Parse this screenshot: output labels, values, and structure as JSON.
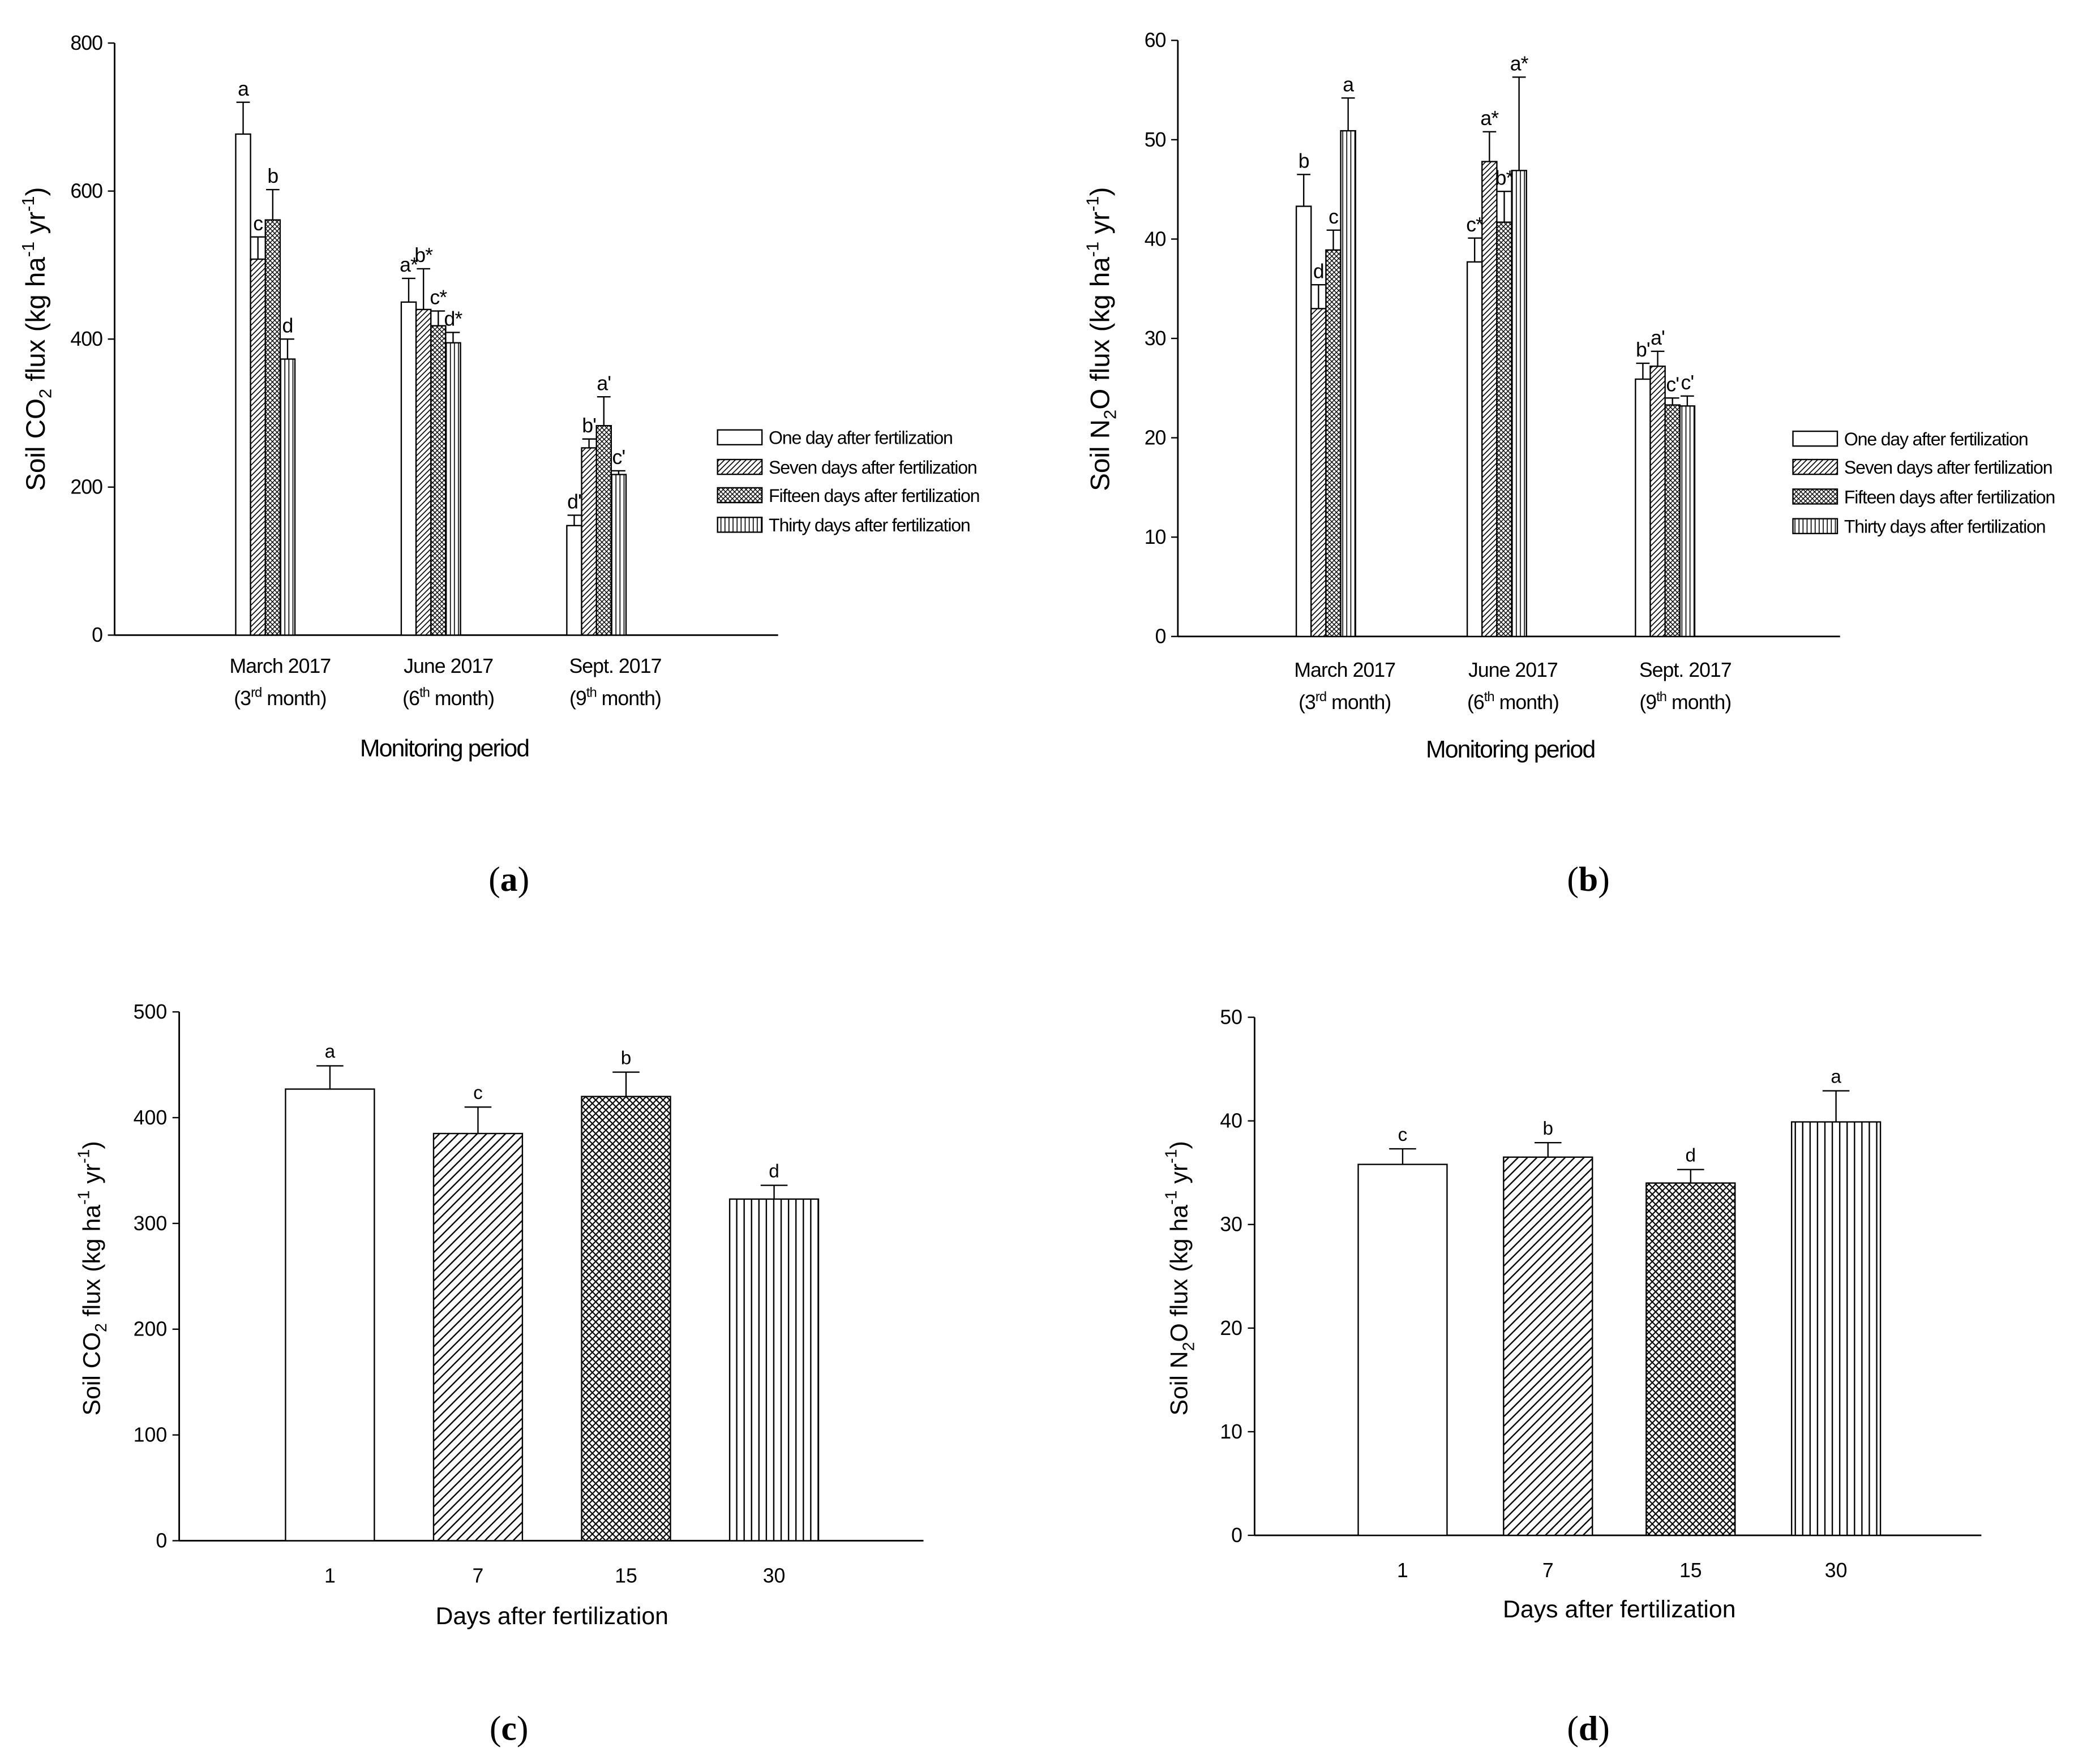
{
  "chart_data": [
    {
      "type": "bar",
      "panel_label": {
        "open": "(",
        "letter": "a",
        "close": ")"
      },
      "ylabel": {
        "pre": "Soil CO",
        "sub": "2",
        "mid": " flux (kg ha",
        "sup1": "-1",
        "mid2": " yr",
        "sup2": "-1",
        "post": ")"
      },
      "xlabel": "Monitoring period",
      "ylim": [
        0,
        800
      ],
      "yticks": [
        0,
        200,
        400,
        600,
        800
      ],
      "categories": [
        {
          "line1": "March 2017",
          "line2_pre": "(3",
          "line2_sup": "rd",
          "line2_post": " month)"
        },
        {
          "line1": "June 2017",
          "line2_pre": "(6",
          "line2_sup": "th",
          "line2_post": " month)"
        },
        {
          "line1": "Sept. 2017",
          "line2_pre": "(9",
          "line2_sup": "th",
          "line2_post": " month)"
        }
      ],
      "series": [
        {
          "name": "One day after fertilization",
          "values": [
            677,
            450,
            148
          ],
          "errors": [
            43,
            32,
            14
          ],
          "labels": [
            "a",
            "a*",
            "d'"
          ]
        },
        {
          "name": "Seven days after fertilization",
          "values": [
            508,
            440,
            253
          ],
          "errors": [
            30,
            55,
            12
          ],
          "labels": [
            "c",
            "b*",
            "b'"
          ]
        },
        {
          "name": "Fifteen days after fertilization",
          "values": [
            561,
            418,
            283
          ],
          "errors": [
            41,
            20,
            39
          ],
          "labels": [
            "b",
            "c*",
            "a'"
          ]
        },
        {
          "name": "Thirty days after fertilization",
          "values": [
            373,
            395,
            217
          ],
          "errors": [
            27,
            14,
            5
          ],
          "labels": [
            "d",
            "d*",
            "c'"
          ]
        }
      ]
    },
    {
      "type": "bar",
      "panel_label": {
        "open": "(",
        "letter": "b",
        "close": ")"
      },
      "ylabel": {
        "pre": "Soil N",
        "sub": "2",
        "mid": "O flux (kg ha",
        "sup1": "-1",
        "mid2": " yr",
        "sup2": "-1",
        "post": ")"
      },
      "xlabel": "Monitoring period",
      "ylim": [
        0,
        60
      ],
      "yticks": [
        0,
        10,
        20,
        30,
        40,
        50,
        60
      ],
      "categories": [
        {
          "line1": "March 2017",
          "line2_pre": "(3",
          "line2_sup": "rd",
          "line2_post": " month)"
        },
        {
          "line1": "June 2017",
          "line2_pre": "(6",
          "line2_sup": "th",
          "line2_post": " month)"
        },
        {
          "line1": "Sept. 2017",
          "line2_pre": "(9",
          "line2_sup": "th",
          "line2_post": " month)"
        }
      ],
      "series": [
        {
          "name": "One day after fertilization",
          "values": [
            43.3,
            37.7,
            25.9
          ],
          "errors": [
            3.2,
            2.4,
            1.6
          ],
          "labels": [
            "b",
            "c*",
            "b'"
          ]
        },
        {
          "name": "Seven days after fertilization",
          "values": [
            33.0,
            47.8,
            27.2
          ],
          "errors": [
            2.4,
            3.0,
            1.5
          ],
          "labels": [
            "d",
            "a*",
            "a'"
          ]
        },
        {
          "name": "Fifteen days after fertilization",
          "values": [
            38.9,
            41.7,
            23.3
          ],
          "errors": [
            2.0,
            3.1,
            0.7
          ],
          "labels": [
            "c",
            "b*",
            "c'"
          ]
        },
        {
          "name": "Thirty days after fertilization",
          "values": [
            50.9,
            46.9,
            23.2
          ],
          "errors": [
            3.3,
            9.4,
            1.0
          ],
          "labels": [
            "a",
            "a*",
            "c'"
          ]
        }
      ]
    },
    {
      "type": "bar",
      "panel_label": {
        "open": "(",
        "letter": "c",
        "close": ")"
      },
      "ylabel": {
        "pre": "Soil CO",
        "sub": "2",
        "mid": " flux (kg ha",
        "sup1": "-1",
        "mid2": " yr",
        "sup2": "-1",
        "post": ")"
      },
      "xlabel": "Days after fertilization",
      "ylim": [
        0,
        500
      ],
      "yticks": [
        0,
        100,
        200,
        300,
        400,
        500
      ],
      "categories": [
        "1",
        "7",
        "15",
        "30"
      ],
      "values": [
        427,
        385,
        420,
        323
      ],
      "errors": [
        22,
        25,
        23,
        13
      ],
      "labels": [
        "a",
        "c",
        "b",
        "d"
      ]
    },
    {
      "type": "bar",
      "panel_label": {
        "open": "(",
        "letter": "d",
        "close": ")"
      },
      "ylabel": {
        "pre": "Soil N",
        "sub": "2",
        "mid": "O flux (kg ha",
        "sup1": "-1",
        "mid2": " yr",
        "sup2": "-1",
        "post": ")"
      },
      "xlabel": "Days after fertilization",
      "ylim": [
        0,
        50
      ],
      "yticks": [
        0,
        10,
        20,
        30,
        40,
        50
      ],
      "categories": [
        "1",
        "7",
        "15",
        "30"
      ],
      "values": [
        35.8,
        36.5,
        34.0,
        39.9
      ],
      "errors": [
        1.5,
        1.4,
        1.3,
        3.0
      ],
      "labels": [
        "c",
        "b",
        "d",
        "a"
      ]
    }
  ]
}
